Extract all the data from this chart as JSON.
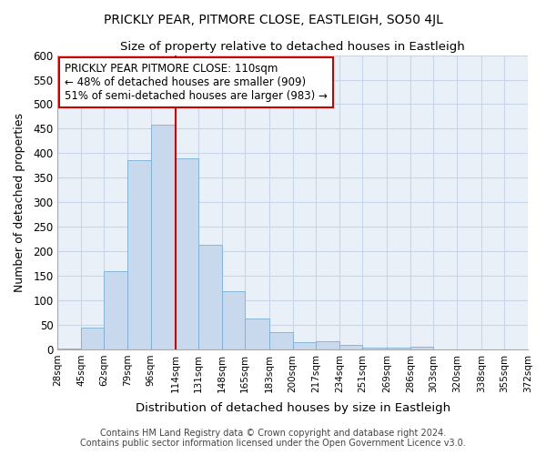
{
  "title": "PRICKLY PEAR, PITMORE CLOSE, EASTLEIGH, SO50 4JL",
  "subtitle": "Size of property relative to detached houses in Eastleigh",
  "xlabel": "Distribution of detached houses by size in Eastleigh",
  "ylabel": "Number of detached properties",
  "bar_color": "#c8d9ed",
  "bar_edge_color": "#7aafd4",
  "grid_color": "#c8d4e8",
  "background_color": "#eaf0f8",
  "vline_value": 114,
  "vline_color": "#cc0000",
  "bins": [
    28,
    45,
    62,
    79,
    96,
    114,
    131,
    148,
    165,
    183,
    200,
    217,
    234,
    251,
    269,
    286,
    303,
    320,
    338,
    355,
    372
  ],
  "counts": [
    2,
    44,
    159,
    386,
    459,
    390,
    214,
    118,
    63,
    35,
    14,
    17,
    9,
    3,
    3,
    5,
    0,
    0,
    0,
    0
  ],
  "tick_labels": [
    "28sqm",
    "45sqm",
    "62sqm",
    "79sqm",
    "96sqm",
    "114sqm",
    "131sqm",
    "148sqm",
    "165sqm",
    "183sqm",
    "200sqm",
    "217sqm",
    "234sqm",
    "251sqm",
    "269sqm",
    "286sqm",
    "303sqm",
    "320sqm",
    "338sqm",
    "355sqm",
    "372sqm"
  ],
  "annotation_line1": "PRICKLY PEAR PITMORE CLOSE: 110sqm",
  "annotation_line2": "← 48% of detached houses are smaller (909)",
  "annotation_line3": "51% of semi-detached houses are larger (983) →",
  "annotation_box_color": "white",
  "annotation_box_edge": "#cc0000",
  "footer1": "Contains HM Land Registry data © Crown copyright and database right 2024.",
  "footer2": "Contains public sector information licensed under the Open Government Licence v3.0.",
  "ylim": [
    0,
    600
  ],
  "yticks": [
    0,
    50,
    100,
    150,
    200,
    250,
    300,
    350,
    400,
    450,
    500,
    550,
    600
  ]
}
